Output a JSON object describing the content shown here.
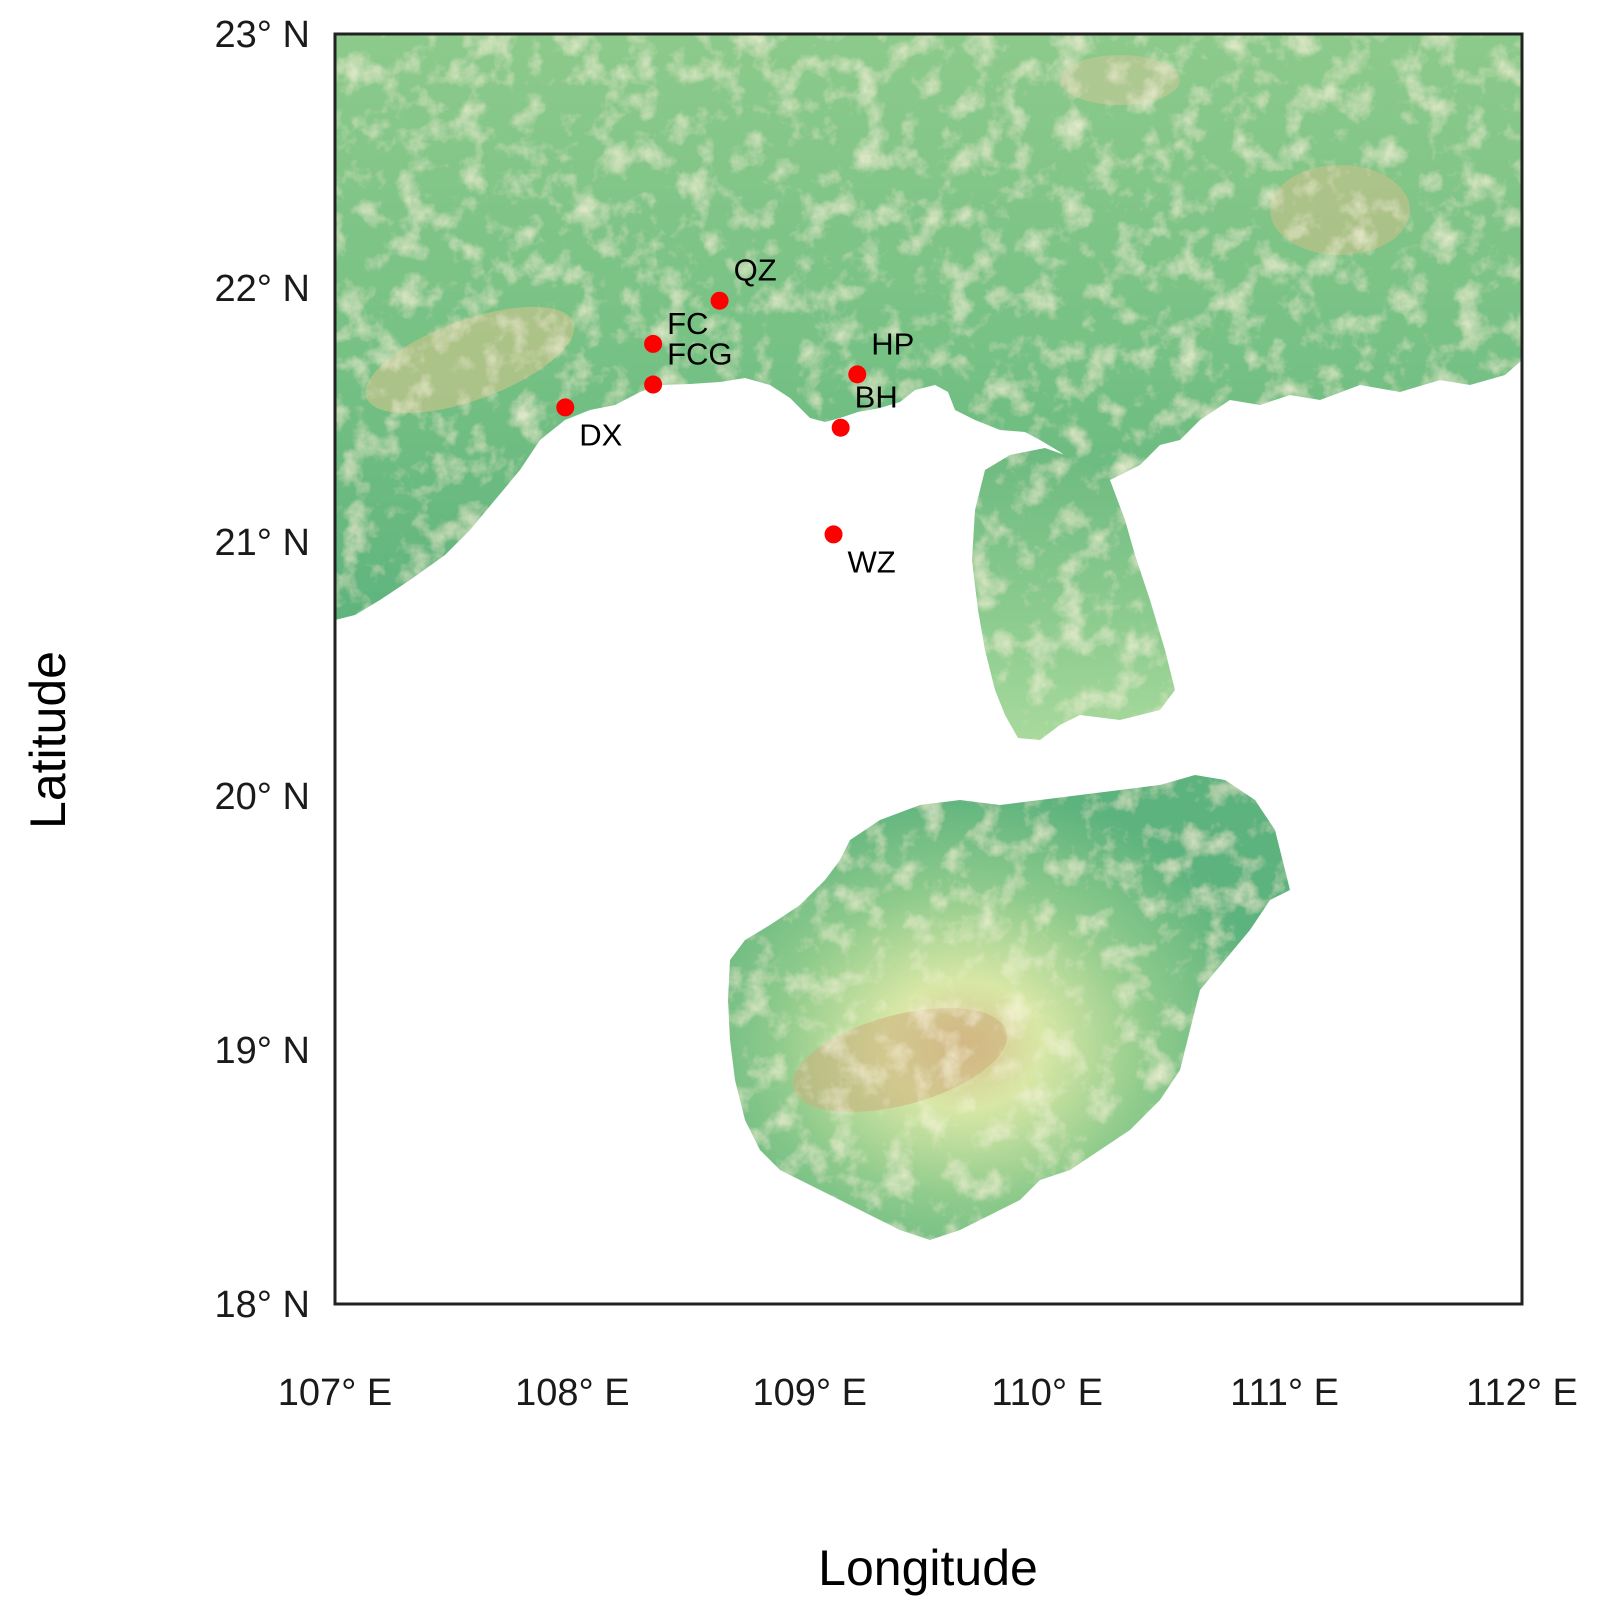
{
  "map": {
    "xlabel": "Longitude",
    "ylabel": "Latitude",
    "lon_range": [
      107,
      112
    ],
    "lat_range": [
      18,
      23
    ],
    "x_ticks": [
      {
        "value": 107,
        "label": "107° E"
      },
      {
        "value": 108,
        "label": "108° E"
      },
      {
        "value": 109,
        "label": "109° E"
      },
      {
        "value": 110,
        "label": "110° E"
      },
      {
        "value": 111,
        "label": "111° E"
      },
      {
        "value": 112,
        "label": "112° E"
      }
    ],
    "y_ticks": [
      {
        "value": 23,
        "label": "23° N"
      },
      {
        "value": 22,
        "label": "22° N"
      },
      {
        "value": 21,
        "label": "21° N"
      },
      {
        "value": 20,
        "label": "20° N"
      },
      {
        "value": 19,
        "label": "19° N"
      },
      {
        "value": 18,
        "label": "18° N"
      }
    ],
    "stations": [
      {
        "code": "QZ",
        "lon": 108.62,
        "lat": 21.95,
        "label_side": "upper-right"
      },
      {
        "code": "FC",
        "lon": 108.34,
        "lat": 21.78,
        "label_side": "right"
      },
      {
        "code": "FCG",
        "lon": 108.34,
        "lat": 21.62,
        "label_side": "upper-right"
      },
      {
        "code": "DX",
        "lon": 107.97,
        "lat": 21.53,
        "label_side": "lower-right"
      },
      {
        "code": "HP",
        "lon": 109.2,
        "lat": 21.66,
        "label_side": "upper-right"
      },
      {
        "code": "BH",
        "lon": 109.13,
        "lat": 21.45,
        "label_side": "upper-right"
      },
      {
        "code": "WZ",
        "lon": 109.1,
        "lat": 21.03,
        "label_side": "lower-right"
      }
    ],
    "colors": {
      "land_low": "#5fb882",
      "land_mid": "#a8d89a",
      "land_high": "#e6ddb0",
      "land_peak": "#c9a877",
      "water": "#ffffff",
      "station_marker": "#ff0000",
      "frame": "#222222"
    }
  }
}
